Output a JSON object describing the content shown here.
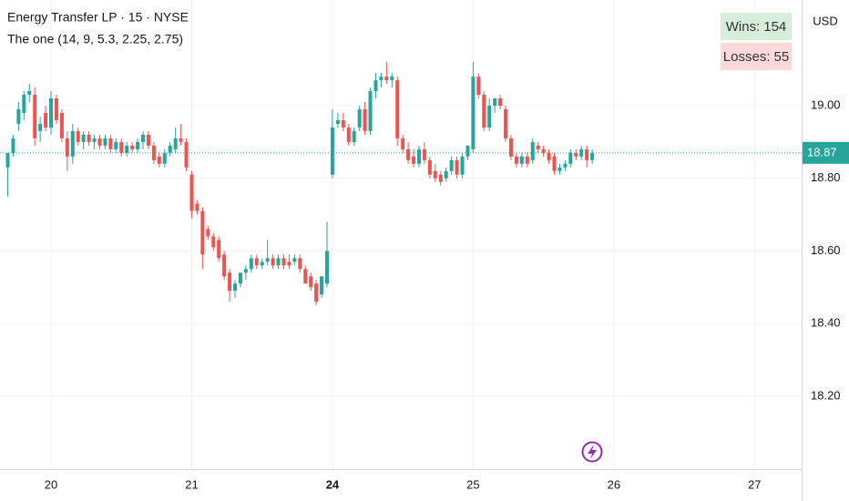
{
  "chart_data": {
    "type": "candlestick",
    "title": "Energy Transfer LP · 15 · NYSE",
    "subtitle": "The one (14, 9, 5.3, 2.25, 2.75)",
    "currency": "USD",
    "stats": [
      {
        "label": "Wins:",
        "value": 154,
        "color": "#d7eedb"
      },
      {
        "label": "Losses:",
        "value": 55,
        "color": "#fbd9d9"
      }
    ],
    "up_color": "#26a69a",
    "down_color": "#ef5350",
    "grid": true,
    "ylim": [
      17.999,
      19.291
    ],
    "yticks": [
      {
        "value": 18.2,
        "label": "18.20"
      },
      {
        "value": 18.4,
        "label": "18.40"
      },
      {
        "value": 18.6,
        "label": "18.60"
      },
      {
        "value": 18.8,
        "label": "18.80"
      },
      {
        "value": 19.0,
        "label": "19.00"
      }
    ],
    "xlim": [
      -1.43,
      146.7
    ],
    "xticks": [
      {
        "value": 8,
        "label": "20"
      },
      {
        "value": 34,
        "label": "21"
      },
      {
        "value": 60,
        "label": "24",
        "bold": true
      },
      {
        "value": 86,
        "label": "25"
      },
      {
        "value": 112,
        "label": "26"
      },
      {
        "value": 138,
        "label": "27"
      }
    ],
    "open": [
      18.83,
      18.87,
      18.95,
      18.98,
      19.03,
      19.03,
      18.93,
      18.98,
      18.94,
      19.02,
      18.98,
      18.91,
      18.86,
      18.93,
      18.9,
      18.92,
      18.9,
      18.91,
      18.89,
      18.91,
      18.88,
      18.9,
      18.87,
      18.89,
      18.88,
      18.9,
      18.92,
      18.89,
      18.86,
      18.84,
      18.87,
      18.88,
      18.91,
      18.9,
      18.81,
      18.73,
      18.71,
      18.66,
      18.64,
      18.63,
      18.59,
      18.54,
      18.49,
      18.51,
      18.54,
      18.55,
      18.58,
      18.56,
      18.57,
      18.58,
      18.56,
      18.58,
      18.57,
      18.57,
      18.58,
      18.55,
      18.53,
      18.51,
      18.48,
      18.51,
      18.81,
      18.95,
      18.96,
      18.94,
      18.9,
      18.94,
      18.99,
      18.93,
      19.04,
      19.07,
      19.08,
      19.07,
      19.07,
      18.91,
      18.88,
      18.86,
      18.84,
      18.88,
      18.85,
      18.82,
      18.81,
      18.8,
      18.82,
      18.85,
      18.81,
      18.86,
      18.88,
      19.08,
      19.03,
      18.94,
      19.0,
      19.02,
      18.99,
      18.91,
      18.86,
      18.84,
      18.86,
      18.85,
      18.89,
      18.88,
      18.87,
      18.86,
      18.82,
      18.83,
      18.84,
      18.87,
      18.86,
      18.88,
      18.85
    ],
    "high": [
      18.87,
      18.92,
      19.01,
      19.04,
      19.06,
      19.05,
      18.97,
      19.0,
      19.04,
      19.03,
      18.99,
      18.93,
      18.95,
      18.94,
      18.93,
      18.93,
      18.92,
      18.92,
      18.92,
      18.92,
      18.91,
      18.91,
      18.9,
      18.9,
      18.91,
      18.93,
      18.93,
      18.9,
      18.87,
      18.88,
      18.9,
      18.94,
      18.95,
      18.91,
      18.82,
      18.74,
      18.72,
      18.67,
      18.65,
      18.64,
      18.6,
      18.55,
      18.52,
      18.54,
      18.56,
      18.59,
      18.59,
      18.58,
      18.63,
      18.59,
      18.59,
      18.59,
      18.59,
      18.59,
      18.59,
      18.56,
      18.54,
      18.52,
      18.53,
      18.68,
      18.99,
      18.98,
      18.98,
      18.95,
      18.94,
      19.0,
      19.01,
      19.05,
      19.09,
      19.09,
      19.12,
      19.09,
      19.08,
      18.92,
      18.9,
      18.88,
      18.89,
      18.9,
      18.86,
      18.84,
      18.82,
      18.83,
      18.86,
      18.86,
      18.87,
      18.89,
      19.12,
      19.09,
      19.04,
      19.02,
      19.02,
      19.03,
      19.0,
      18.92,
      18.87,
      18.87,
      18.87,
      18.91,
      18.9,
      18.89,
      18.88,
      18.87,
      18.84,
      18.85,
      18.88,
      18.88,
      18.89,
      18.89,
      18.88
    ],
    "low": [
      18.75,
      18.86,
      18.93,
      18.96,
      19.01,
      18.89,
      18.9,
      18.93,
      18.92,
      18.95,
      18.9,
      18.82,
      18.84,
      18.89,
      18.88,
      18.89,
      18.88,
      18.88,
      18.88,
      18.87,
      18.87,
      18.86,
      18.86,
      18.87,
      18.87,
      18.88,
      18.88,
      18.84,
      18.83,
      18.83,
      18.86,
      18.87,
      18.89,
      18.82,
      18.69,
      18.7,
      18.55,
      18.63,
      18.6,
      18.57,
      18.52,
      18.46,
      18.47,
      18.5,
      18.52,
      18.54,
      18.55,
      18.55,
      18.56,
      18.55,
      18.55,
      18.55,
      18.55,
      18.56,
      18.54,
      18.51,
      18.49,
      18.45,
      18.47,
      18.5,
      18.8,
      18.94,
      18.93,
      18.89,
      18.89,
      18.93,
      18.92,
      18.92,
      19.02,
      19.05,
      19.06,
      19.05,
      18.89,
      18.87,
      18.84,
      18.83,
      18.83,
      18.84,
      18.8,
      18.79,
      18.78,
      18.79,
      18.81,
      18.8,
      18.8,
      18.85,
      18.87,
      19.02,
      18.93,
      18.93,
      18.98,
      18.99,
      18.9,
      18.85,
      18.83,
      18.83,
      18.83,
      18.84,
      18.87,
      18.86,
      18.84,
      18.81,
      18.81,
      18.82,
      18.83,
      18.85,
      18.85,
      18.83,
      18.84
    ],
    "close": [
      18.87,
      18.91,
      18.99,
      19.03,
      19.04,
      18.91,
      18.95,
      18.94,
      19.02,
      18.96,
      18.91,
      18.86,
      18.93,
      18.9,
      18.92,
      18.9,
      18.91,
      18.89,
      18.91,
      18.88,
      18.9,
      18.87,
      18.89,
      18.88,
      18.9,
      18.92,
      18.89,
      18.85,
      18.84,
      18.87,
      18.89,
      18.91,
      18.9,
      18.83,
      18.71,
      18.71,
      18.59,
      18.64,
      18.61,
      18.58,
      18.53,
      18.49,
      18.51,
      18.54,
      18.55,
      18.58,
      18.56,
      18.57,
      18.58,
      18.56,
      18.58,
      18.56,
      18.56,
      18.58,
      18.55,
      18.51,
      18.5,
      18.46,
      18.53,
      18.6,
      18.94,
      18.96,
      18.94,
      18.9,
      18.93,
      18.99,
      18.93,
      19.04,
      19.07,
      19.08,
      19.07,
      19.08,
      18.91,
      18.88,
      18.85,
      18.84,
      18.88,
      18.85,
      18.81,
      18.8,
      18.79,
      18.82,
      18.85,
      18.81,
      18.86,
      18.89,
      19.08,
      19.03,
      18.94,
      19.0,
      19.02,
      19.0,
      18.91,
      18.86,
      18.84,
      18.86,
      18.84,
      18.9,
      18.88,
      18.87,
      18.85,
      18.82,
      18.83,
      18.84,
      18.87,
      18.86,
      18.88,
      18.85,
      18.87
    ]
  }
}
